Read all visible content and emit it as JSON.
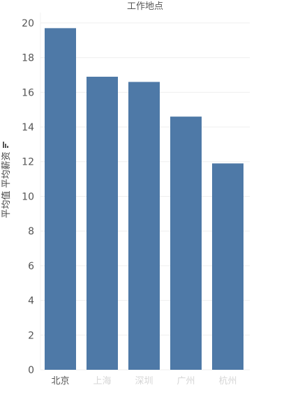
{
  "chart_data": {
    "type": "bar",
    "title": "工作地点",
    "ylabel": "平均值 平均薪资",
    "categories": [
      "北京",
      "上海",
      "深圳",
      "广州",
      "杭州"
    ],
    "values": [
      19.7,
      16.9,
      16.6,
      14.6,
      11.9
    ],
    "yticks": [
      0,
      2,
      4,
      6,
      8,
      10,
      12,
      14,
      16,
      18,
      20
    ],
    "ylim": [
      0,
      20.6
    ],
    "grid": true,
    "bar_color": "#4e79a7"
  }
}
